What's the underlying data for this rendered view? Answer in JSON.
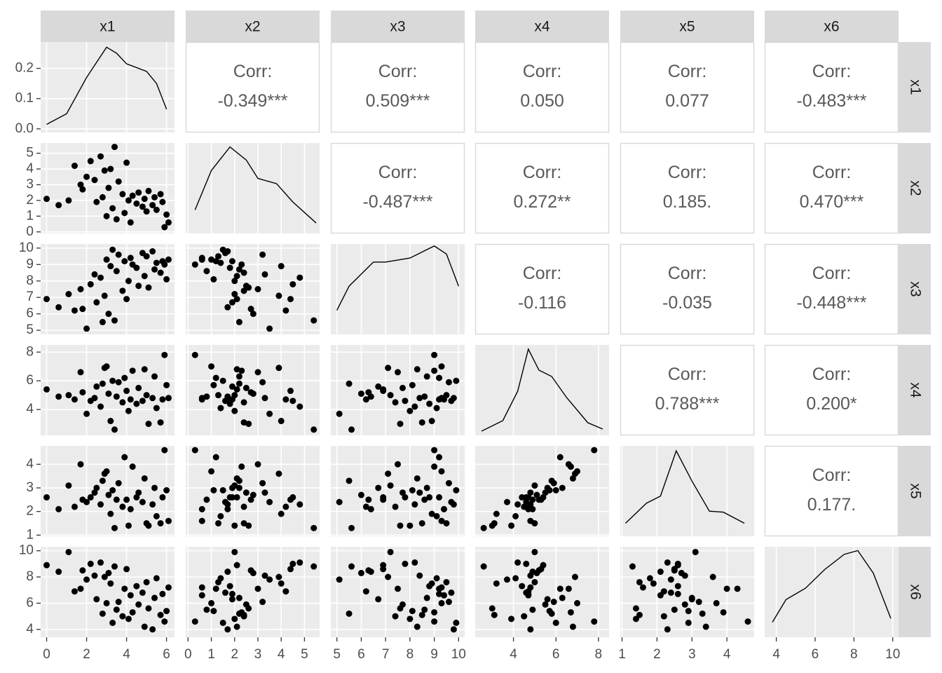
{
  "chart_data": {
    "type": "scatter_matrix",
    "corr_title": "Corr:",
    "corr_labels": [
      [
        "-0.349***",
        "0.509***",
        "0.050",
        "0.077",
        "-0.483***"
      ],
      [
        "-0.487***",
        "0.272**",
        "0.185.",
        "0.470***"
      ],
      [
        "-0.116",
        "-0.035",
        "-0.448***"
      ],
      [
        "0.788***",
        "0.200*"
      ],
      [
        "0.177."
      ],
      []
    ],
    "variables": [
      {
        "name": "x1",
        "lim": [
          -0.3,
          6.4
        ],
        "ticks": [
          0,
          2,
          4,
          6
        ],
        "values": [
          0.0,
          0.6,
          1.1,
          1.4,
          1.7,
          1.8,
          2.0,
          2.2,
          2.4,
          2.5,
          2.7,
          2.8,
          2.9,
          3.0,
          3.1,
          3.2,
          3.3,
          3.4,
          3.5,
          3.6,
          3.8,
          3.9,
          4.0,
          4.1,
          4.2,
          4.3,
          4.5,
          4.6,
          4.8,
          4.9,
          5.0,
          5.1,
          5.3,
          5.4,
          5.5,
          5.7,
          5.8,
          5.9,
          6.1,
          6.0
        ],
        "density_x": [
          0,
          1,
          2,
          3,
          3.5,
          4,
          5,
          5.5,
          6
        ],
        "density_y": [
          0.015,
          0.05,
          0.17,
          0.27,
          0.25,
          0.215,
          0.19,
          0.15,
          0.065
        ],
        "density_ylim": [
          -0.012,
          0.287
        ],
        "density_ticks": [
          {
            "value": 0,
            "label": "0.0"
          },
          {
            "value": 0.1,
            "label": "0.1"
          },
          {
            "value": 0.2,
            "label": "0.2"
          }
        ]
      },
      {
        "name": "x2",
        "lim": [
          -0.1,
          5.65
        ],
        "ticks": [
          0,
          1,
          2,
          3,
          4,
          5
        ],
        "values": [
          2.1,
          1.7,
          2.0,
          4.2,
          3.0,
          2.7,
          3.5,
          4.5,
          3.3,
          1.9,
          4.8,
          2.2,
          3.9,
          1.0,
          2.8,
          4.0,
          1.5,
          5.4,
          0.8,
          3.2,
          2.4,
          1.2,
          4.4,
          2.0,
          0.6,
          2.3,
          1.8,
          2.5,
          1.6,
          2.1,
          1.3,
          2.6,
          1.7,
          2.2,
          1.4,
          2.4,
          1.9,
          0.3,
          0.6,
          1.1
        ],
        "density_x": [
          0.3,
          1,
          1.8,
          2.5,
          3,
          3.8,
          4.5,
          5.5
        ],
        "density_y": [
          0.07,
          0.22,
          0.31,
          0.26,
          0.19,
          0.17,
          0.1,
          0.02
        ],
        "density_ylim": [
          -0.02,
          0.325
        ]
      },
      {
        "name": "x3",
        "lim": [
          4.75,
          10.25
        ],
        "ticks": [
          5,
          6,
          7,
          8,
          9,
          10
        ],
        "values": [
          6.9,
          6.4,
          7.2,
          6.2,
          7.5,
          6.3,
          5.1,
          7.8,
          8.4,
          6.7,
          8.2,
          5.5,
          7.1,
          9.3,
          6.0,
          8.9,
          9.9,
          5.6,
          8.6,
          9.6,
          7.4,
          9.2,
          6.9,
          8.0,
          9.4,
          9.0,
          8.8,
          7.7,
          9.7,
          8.3,
          9.5,
          7.6,
          9.8,
          8.7,
          9.1,
          8.5,
          9.2,
          9.0,
          9.3,
          8.1
        ],
        "density_x": [
          5,
          5.5,
          6.5,
          7,
          8,
          9,
          9.5,
          10
        ],
        "density_y": [
          0.09,
          0.15,
          0.21,
          0.21,
          0.22,
          0.25,
          0.23,
          0.15
        ],
        "density_ylim": [
          0.03,
          0.255
        ]
      },
      {
        "name": "x4",
        "lim": [
          2.2,
          8.5
        ],
        "ticks": [
          4,
          6,
          8
        ],
        "values": [
          5.4,
          4.9,
          5.0,
          4.7,
          6.6,
          5.2,
          3.7,
          4.6,
          4.8,
          5.6,
          4.2,
          5.8,
          6.9,
          7.0,
          5.1,
          3.2,
          6.0,
          2.6,
          4.9,
          5.9,
          4.5,
          6.2,
          5.3,
          3.9,
          4.7,
          6.7,
          4.4,
          5.5,
          4.6,
          6.8,
          5.0,
          3.0,
          4.8,
          6.3,
          4.1,
          3.1,
          4.7,
          7.8,
          4.8,
          5.7
        ],
        "density_x": [
          2.5,
          3.5,
          4.2,
          4.7,
          5.2,
          5.8,
          6.5,
          7.5,
          8.2
        ],
        "density_y": [
          0.01,
          0.06,
          0.2,
          0.4,
          0.3,
          0.27,
          0.17,
          0.05,
          0.02
        ],
        "density_ylim": [
          -0.01,
          0.42
        ]
      },
      {
        "name": "x5",
        "lim": [
          0.95,
          4.78
        ],
        "ticks": [
          1,
          2,
          3,
          4
        ],
        "values": [
          2.6,
          2.1,
          3.1,
          2.2,
          4.0,
          2.5,
          2.4,
          2.6,
          2.8,
          3.0,
          2.3,
          3.3,
          3.6,
          3.7,
          2.7,
          1.9,
          2.9,
          1.3,
          2.5,
          3.2,
          2.2,
          4.3,
          2.5,
          1.4,
          2.1,
          3.9,
          2.6,
          2.8,
          2.4,
          3.4,
          1.5,
          1.4,
          2.3,
          3.0,
          1.8,
          1.5,
          2.6,
          4.6,
          1.6,
          2.9
        ],
        "density_x": [
          1.1,
          1.7,
          2.1,
          2.55,
          3,
          3.5,
          3.9,
          4.5
        ],
        "density_y": [
          0.08,
          0.28,
          0.35,
          0.8,
          0.5,
          0.2,
          0.19,
          0.08
        ],
        "density_ylim": [
          -0.05,
          0.85
        ]
      },
      {
        "name": "x6",
        "lim": [
          3.4,
          10.3
        ],
        "ticks": [
          4,
          6,
          8,
          10
        ],
        "values": [
          8.9,
          8.4,
          9.9,
          6.9,
          7.1,
          8.5,
          7.8,
          9.0,
          8.1,
          6.3,
          9.1,
          5.2,
          8.0,
          6.0,
          8.3,
          7.5,
          4.5,
          8.8,
          5.5,
          6.1,
          5.0,
          7.1,
          8.6,
          4.8,
          6.6,
          5.3,
          7.3,
          5.9,
          6.8,
          4.2,
          7.6,
          5.6,
          4.0,
          6.4,
          7.9,
          5.1,
          6.7,
          4.6,
          7.2,
          5.4
        ],
        "density_x": [
          3.8,
          4.5,
          5.5,
          6.5,
          7.5,
          8.2,
          9,
          9.9
        ],
        "density_y": [
          0.04,
          0.1,
          0.13,
          0.18,
          0.22,
          0.23,
          0.17,
          0.05
        ],
        "density_ylim": [
          0.0,
          0.24
        ]
      }
    ]
  }
}
